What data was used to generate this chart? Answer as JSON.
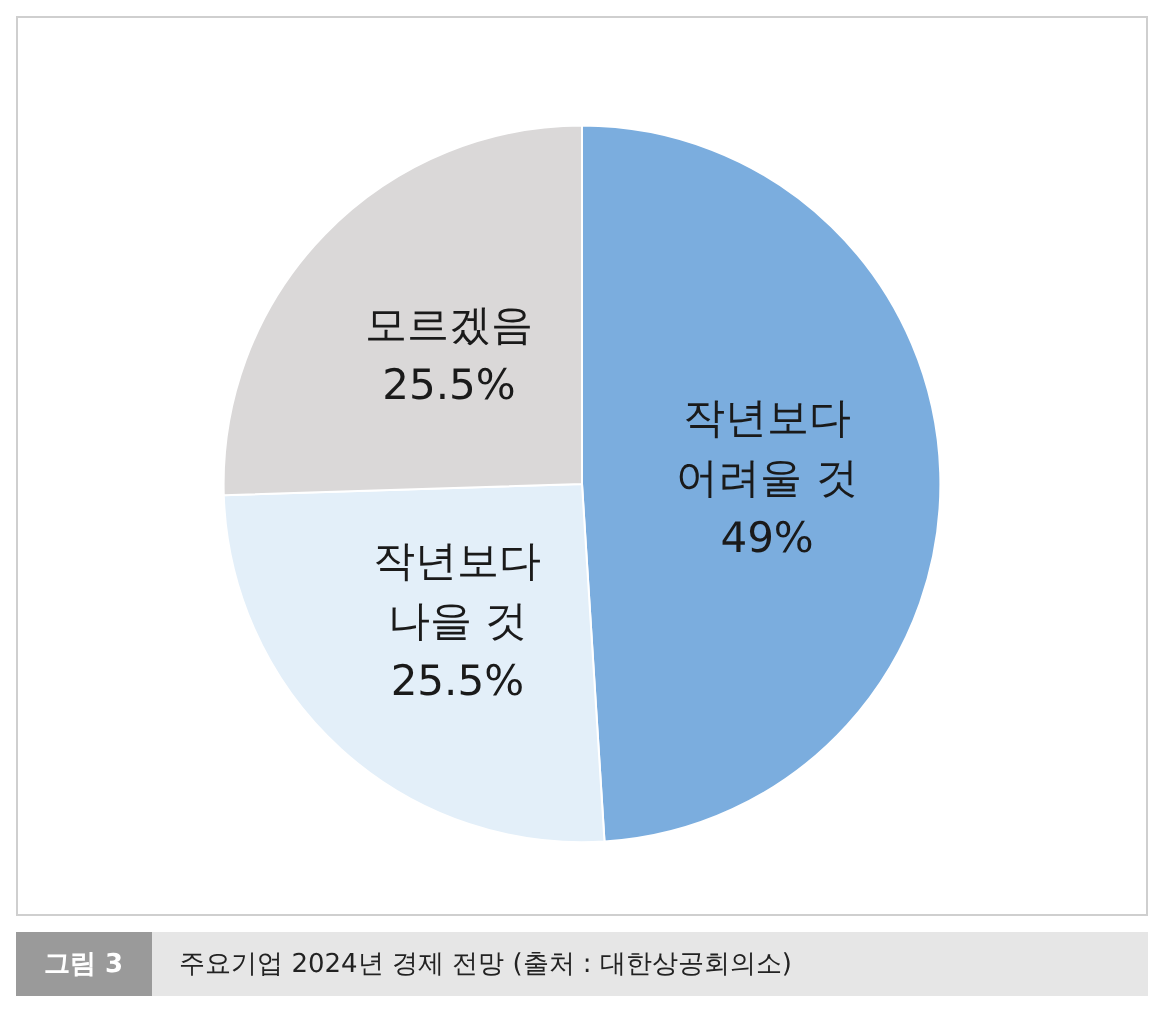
{
  "chart_data": {
    "type": "pie",
    "title": "주요기업 2024년 경제 전망 (출처 : 대한상공회의소)",
    "annotations": [
      "그림 3"
    ],
    "categories": [
      "작년보다\n어려울 것",
      "작년보다\n나을 것",
      "모르겠음"
    ],
    "values": [
      49,
      25.5,
      25.5
    ],
    "colors": [
      "#7badde",
      "#e3eff9",
      "#dad8d8"
    ],
    "value_labels": [
      "49%",
      "25.5%",
      "25.5%"
    ],
    "legend": false
  }
}
